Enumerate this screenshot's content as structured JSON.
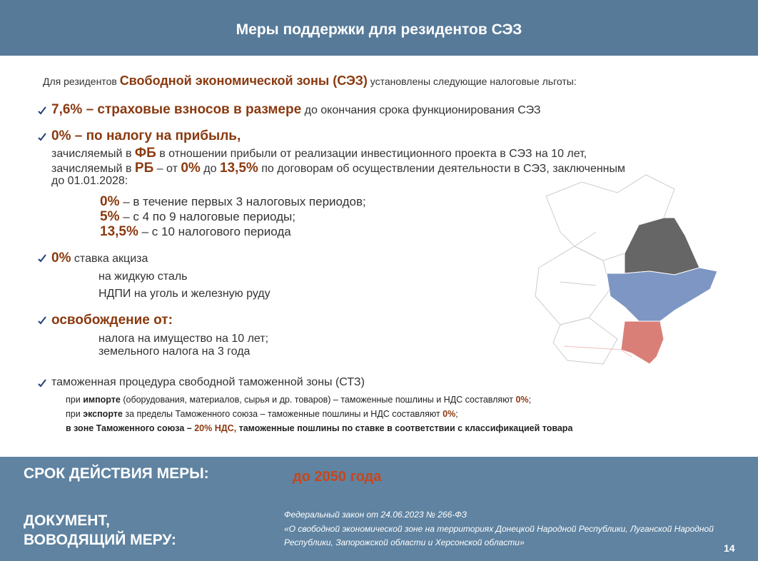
{
  "header": {
    "title": "Меры поддержки для резидентов СЭЗ"
  },
  "intro": [
    "Для резидентов ",
    "Свободной экономической зоны (СЭЗ)",
    " установлены следующие налоговые льготы:"
  ],
  "items": [
    {
      "lines": [
        [
          "7,6% – страховые взносов в размере",
          " до окончания срока функционирования СЭЗ"
        ]
      ]
    },
    {
      "lines": [
        [
          "0% – по налогу на прибыль,"
        ],
        [
          "зачисляемый в ",
          "ФБ",
          " в отношении прибыли от реализации инвестиционного проекта в СЭЗ на 10 лет,"
        ],
        [
          "зачисляемый в ",
          "РБ",
          " – от ",
          "0%",
          " до ",
          "13,5%",
          " по договорам об осуществлении деятельности в СЭЗ, заключенным"
        ],
        [
          "до 01.01.2028:"
        ]
      ],
      "sub": [
        [
          "0%",
          " – в течение первых 3 налоговых периодов;"
        ],
        [
          "5%",
          " – с 4 по 9 налоговые периоды;"
        ],
        [
          "13,5%",
          " – с 10 налогового периода"
        ]
      ]
    },
    {
      "lines": [
        [
          "0%",
          " ставка акциза"
        ]
      ],
      "sub": [
        [
          "на жидкую сталь"
        ],
        [
          "НДПИ на уголь и железную руду"
        ]
      ]
    },
    {
      "lines": [
        [
          "освобождение от:"
        ]
      ],
      "sub": [
        [
          "налога на имущество на 10 лет;"
        ],
        [
          "земельного налога на 3 года"
        ]
      ]
    },
    {
      "lines": [
        [
          "таможенная процедура свободной таможенной зоны (СТЗ)"
        ]
      ],
      "sub": [
        [
          "при ",
          "импорте",
          " (оборудования, материалов, сырья и др. товаров) – таможенные пошлины и НДС составляют ",
          "0%",
          ";"
        ],
        [
          "при ",
          "экспорте",
          " за пределы Таможенного союза – таможенные пошлины и НДС составляют ",
          "0%",
          ";"
        ],
        [
          "в зоне Таможенного союза – ",
          "20% НДС,",
          " таможенные пошлины по ставке в соответствии с классификацией товара"
        ]
      ]
    }
  ],
  "footer": {
    "term_label": "СРОК ДЕЙСТВИЯ МЕРЫ:",
    "term_value": "до 2050 года",
    "doc_label": [
      "ДОКУМЕНТ,",
      "ВОВОДЯЩИЙ МЕРУ:"
    ],
    "doc_text": [
      "Федеральный закон от 24.06.2023 № 266-ФЗ",
      "«О свободной экономической зоне на территориях Донецкой Народной Республики, Луганской Народной",
      "Республики, Запорожской области и Херсонской области»"
    ],
    "page": "14"
  }
}
